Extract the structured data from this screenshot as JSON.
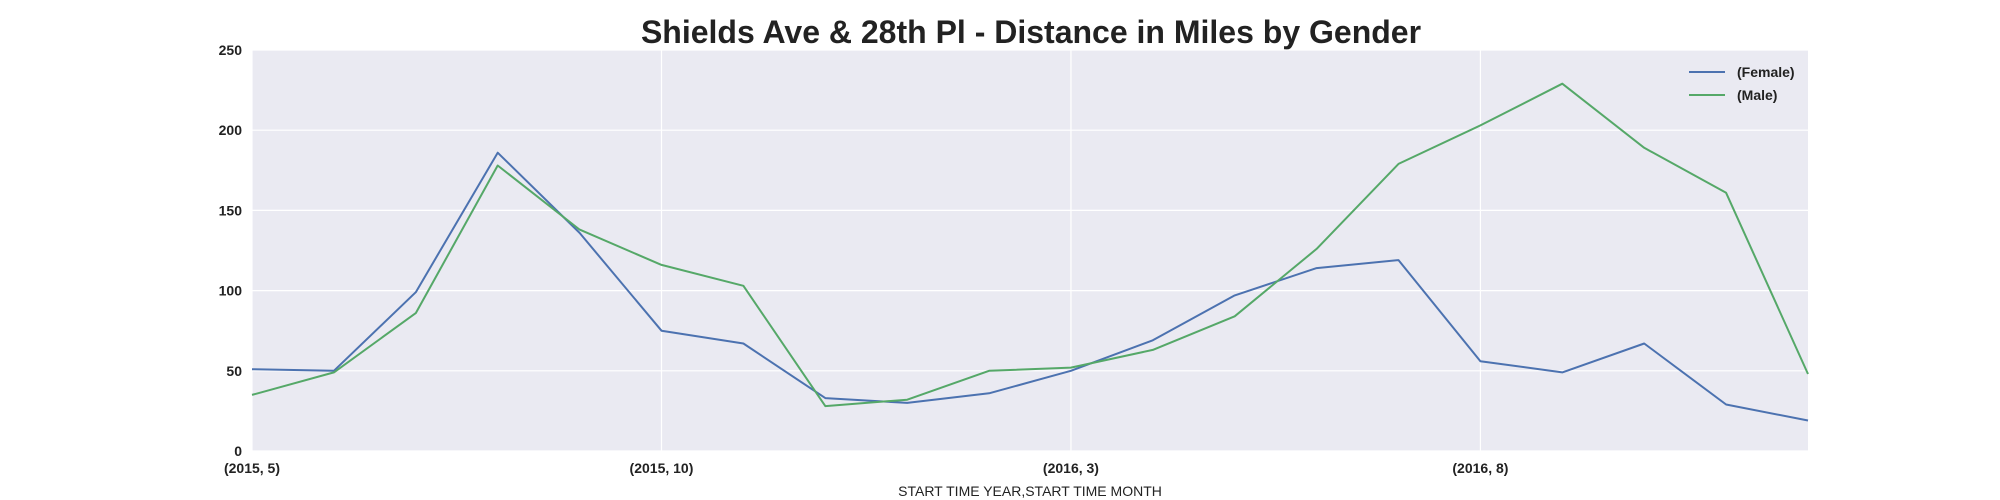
{
  "chart_data": {
    "type": "line",
    "title": "Shields Ave & 28th Pl - Distance in Miles by Gender",
    "xlabel": "START TIME YEAR,START TIME MONTH",
    "ylabel": "",
    "x": [
      "(2015, 5)",
      "(2015, 6)",
      "(2015, 7)",
      "(2015, 8)",
      "(2015, 9)",
      "(2015, 10)",
      "(2015, 11)",
      "(2015, 12)",
      "(2016, 1)",
      "(2016, 2)",
      "(2016, 3)",
      "(2016, 4)",
      "(2016, 5)",
      "(2016, 6)",
      "(2016, 7)",
      "(2016, 8)",
      "(2016, 9)",
      "(2016, 10)",
      "(2016, 11)",
      "(2016, 12)"
    ],
    "x_ticks_shown": [
      "(2015, 5)",
      "(2015, 10)",
      "(2016, 3)",
      "(2016, 8)"
    ],
    "ylim": [
      0,
      250
    ],
    "y_ticks": [
      0,
      50,
      100,
      150,
      200,
      250
    ],
    "grid": true,
    "legend_position": "top-right",
    "series": [
      {
        "name": "(Female)",
        "color": "#4c72b0",
        "values": [
          51,
          50,
          99,
          186,
          136,
          75,
          67,
          33,
          30,
          36,
          50,
          69,
          97,
          114,
          119,
          56,
          49,
          67,
          29,
          19
        ]
      },
      {
        "name": "(Male)",
        "color": "#55a868",
        "values": [
          35,
          49,
          86,
          178,
          138,
          116,
          103,
          28,
          32,
          50,
          52,
          63,
          84,
          126,
          179,
          203,
          229,
          189,
          161,
          48
        ]
      }
    ],
    "colors": {
      "plot_background": "#eaeaf2",
      "grid": "#ffffff",
      "text": "#222222"
    }
  }
}
